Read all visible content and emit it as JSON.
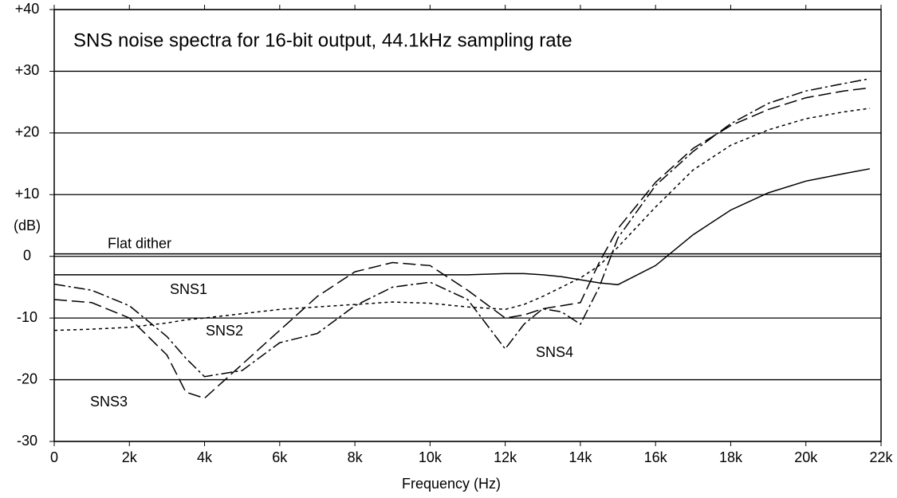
{
  "chart_data": {
    "type": "line",
    "title": "SNS noise spectra for 16-bit output, 44.1kHz sampling rate",
    "xlabel": "Frequency (Hz)",
    "ylabel": "(dB)",
    "xlim": [
      0,
      22000
    ],
    "ylim": [
      -30,
      40
    ],
    "xticks": [
      0,
      {
        "value": 2000,
        "label": "2k"
      },
      {
        "value": 4000,
        "label": "4k"
      },
      {
        "value": 6000,
        "label": "6k"
      },
      {
        "value": 8000,
        "label": "8k"
      },
      {
        "value": 10000,
        "label": "10k"
      },
      {
        "value": 12000,
        "label": "12k"
      },
      {
        "value": 14000,
        "label": "14k"
      },
      {
        "value": 16000,
        "label": "16k"
      },
      {
        "value": 18000,
        "label": "18k"
      },
      {
        "value": 20000,
        "label": "20k"
      },
      {
        "value": 22000,
        "label": "22k"
      }
    ],
    "yticks": [
      {
        "value": 40,
        "label": "+40"
      },
      {
        "value": 30,
        "label": "+30"
      },
      {
        "value": 20,
        "label": "+20"
      },
      {
        "value": 10,
        "label": "+10"
      },
      0,
      -10,
      -20,
      -30
    ],
    "grid": true,
    "reference_line": {
      "name": "Flat dither",
      "value": 0.4,
      "color": "#000000"
    },
    "x": [
      0,
      1000,
      2000,
      3000,
      3500,
      4000,
      5000,
      6000,
      7000,
      8000,
      9000,
      10000,
      11000,
      12000,
      12500,
      13000,
      13500,
      14000,
      14500,
      15000,
      16000,
      17000,
      18000,
      19000,
      20000,
      21000,
      21700
    ],
    "series": [
      {
        "name": "SNS1",
        "color": "#000000",
        "dash": "solid",
        "values": [
          -3,
          -3,
          -3,
          -3,
          -3,
          -3,
          -3,
          -3,
          -3,
          -3,
          -3,
          -3,
          -3,
          -2.8,
          -2.8,
          -3,
          -3.3,
          -3.8,
          -4.3,
          -4.6,
          -1.5,
          3.5,
          7.5,
          10.3,
          12.2,
          13.4,
          14.2
        ]
      },
      {
        "name": "SNS2",
        "color": "#000000",
        "dash": "dotted",
        "values": [
          -12,
          -11.8,
          -11.5,
          -10.8,
          -10.3,
          -10,
          -9.3,
          -8.6,
          -8.2,
          -7.8,
          -7.4,
          -7.6,
          -8.2,
          -8.6,
          -7.8,
          -6.5,
          -5,
          -3.5,
          -1.5,
          1.5,
          8,
          14,
          18,
          20.5,
          22.3,
          23.4,
          24
        ]
      },
      {
        "name": "SNS3",
        "color": "#000000",
        "dash": "dashed",
        "values": [
          -7,
          -7.5,
          -10,
          -16,
          -22,
          -23,
          -17.5,
          -12,
          -6.5,
          -2.5,
          -1,
          -1.5,
          -5.5,
          -10,
          -9.5,
          -8.5,
          -8,
          -7.5,
          -1,
          4.5,
          12,
          17.5,
          21.2,
          23.8,
          25.7,
          26.8,
          27.3
        ]
      },
      {
        "name": "SNS4",
        "color": "#000000",
        "dash": "dashdot",
        "values": [
          -4.5,
          -5.5,
          -8,
          -13,
          -16.5,
          -19.5,
          -18.5,
          -14,
          -12.5,
          -8,
          -5,
          -4.2,
          -7,
          -15,
          -11,
          -8.5,
          -9,
          -11,
          -5,
          3,
          11.5,
          17,
          21.5,
          24.8,
          26.8,
          28,
          28.8
        ]
      }
    ]
  }
}
